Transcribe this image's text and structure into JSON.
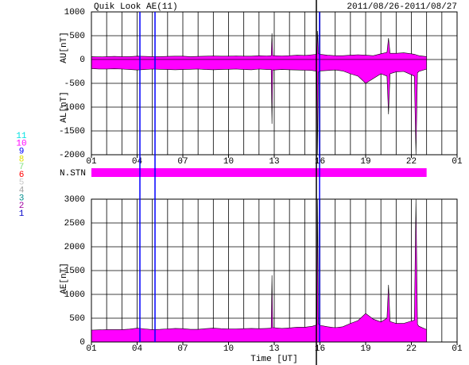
{
  "header": {
    "title": "Quik Look AE(11)",
    "date_range": "2011/08/26-2011/08/27"
  },
  "station": {
    "label": "N.STN",
    "coverage": [
      1,
      23
    ],
    "color": "#ff00ff"
  },
  "station_legend": [
    {
      "label": "11",
      "color": "#00e0e0"
    },
    {
      "label": "10",
      "color": "#ff00ff"
    },
    {
      "label": "9",
      "color": "#0000ff"
    },
    {
      "label": "8",
      "color": "#e0e000"
    },
    {
      "label": "7",
      "color": "#80e080"
    },
    {
      "label": "6",
      "color": "#ff0000"
    },
    {
      "label": "5",
      "color": "#c8c8c8"
    },
    {
      "label": "4",
      "color": "#a0a0a0"
    },
    {
      "label": "3",
      "color": "#008c8c"
    },
    {
      "label": "2",
      "color": "#a000a0"
    },
    {
      "label": "1",
      "color": "#0000c8"
    }
  ],
  "chart_data": [
    {
      "type": "area",
      "ylabels": [
        "AU[nT]",
        "AL[nT]"
      ],
      "xlim": [
        1,
        25
      ],
      "xticks": [
        {
          "value": 1,
          "label": "01"
        },
        {
          "value": 4,
          "label": "04"
        },
        {
          "value": 7,
          "label": "07"
        },
        10,
        13,
        16,
        19,
        22,
        {
          "value": 25,
          "label": "01"
        }
      ],
      "ylim": [
        -2000,
        1000
      ],
      "yticks": [
        -2000,
        -1500,
        -1000,
        -500,
        0,
        500,
        1000
      ],
      "grid": true,
      "x": [
        1,
        1.5,
        2,
        2.5,
        3,
        3.5,
        4,
        4.5,
        5,
        5.5,
        6,
        6.5,
        7,
        7.5,
        8,
        8.5,
        9,
        9.5,
        10,
        10.5,
        11,
        11.5,
        12,
        12.5,
        12.8,
        12.85,
        12.9,
        13,
        13.5,
        14,
        14.5,
        15,
        15.5,
        15.8,
        15.85,
        15.9,
        16,
        16.5,
        17,
        17.5,
        18,
        18.5,
        19,
        19.5,
        20,
        20.4,
        20.5,
        20.6,
        21,
        21.5,
        22,
        22.2,
        22.3,
        22.4,
        22.5,
        23
      ],
      "series": [
        {
          "color": "#ff00ff",
          "values": [
            60,
            55,
            60,
            65,
            60,
            60,
            70,
            65,
            60,
            60,
            65,
            70,
            70,
            60,
            65,
            70,
            75,
            70,
            70,
            75,
            70,
            70,
            80,
            75,
            80,
            550,
            80,
            80,
            75,
            80,
            90,
            85,
            100,
            110,
            600,
            120,
            110,
            90,
            80,
            80,
            90,
            100,
            90,
            80,
            120,
            150,
            450,
            130,
            130,
            140,
            120,
            110,
            100,
            90,
            80,
            60
          ]
        },
        {
          "color": "#ff00ff",
          "values": [
            -190,
            -200,
            -200,
            -195,
            -200,
            -210,
            -220,
            -210,
            -200,
            -205,
            -210,
            -215,
            -210,
            -205,
            -200,
            -210,
            -215,
            -210,
            -205,
            -200,
            -210,
            -215,
            -200,
            -210,
            -210,
            -1350,
            -220,
            -220,
            -210,
            -215,
            -220,
            -225,
            -230,
            -250,
            -2000,
            -260,
            -240,
            -230,
            -220,
            -240,
            -300,
            -350,
            -500,
            -400,
            -300,
            -350,
            -1150,
            -300,
            -260,
            -250,
            -320,
            -350,
            -2000,
            -280,
            -250,
            -200
          ]
        }
      ]
    },
    {
      "type": "area",
      "ylabels": [
        "AE[nT]"
      ],
      "xlabel": "Time [UT]",
      "xlim": [
        1,
        25
      ],
      "xticks": [
        {
          "value": 1,
          "label": "01"
        },
        {
          "value": 4,
          "label": "04"
        },
        {
          "value": 7,
          "label": "07"
        },
        10,
        13,
        16,
        19,
        22,
        {
          "value": 25,
          "label": "01"
        }
      ],
      "ylim": [
        0,
        3000
      ],
      "yticks": [
        0,
        500,
        1000,
        1500,
        2000,
        2500,
        3000
      ],
      "grid": true,
      "x": [
        1,
        1.5,
        2,
        2.5,
        3,
        3.5,
        4,
        4.5,
        5,
        5.5,
        6,
        6.5,
        7,
        7.5,
        8,
        8.5,
        9,
        9.5,
        10,
        10.5,
        11,
        11.5,
        12,
        12.5,
        12.8,
        12.85,
        12.9,
        13,
        13.5,
        14,
        14.5,
        15,
        15.5,
        15.8,
        15.85,
        15.9,
        16,
        16.5,
        17,
        17.5,
        18,
        18.5,
        19,
        19.5,
        20,
        20.4,
        20.5,
        20.6,
        21,
        21.5,
        22,
        22.2,
        22.3,
        22.4,
        22.5,
        23
      ],
      "series": [
        {
          "color": "#ff00ff",
          "values": [
            250,
            255,
            260,
            260,
            260,
            270,
            290,
            275,
            260,
            265,
            275,
            285,
            280,
            265,
            265,
            280,
            290,
            280,
            275,
            275,
            280,
            285,
            280,
            285,
            290,
            1400,
            300,
            300,
            285,
            295,
            310,
            310,
            330,
            360,
            3000,
            380,
            350,
            320,
            300,
            320,
            390,
            450,
            600,
            480,
            420,
            500,
            1200,
            430,
            390,
            390,
            440,
            460,
            3000,
            370,
            330,
            260
          ]
        }
      ]
    }
  ]
}
